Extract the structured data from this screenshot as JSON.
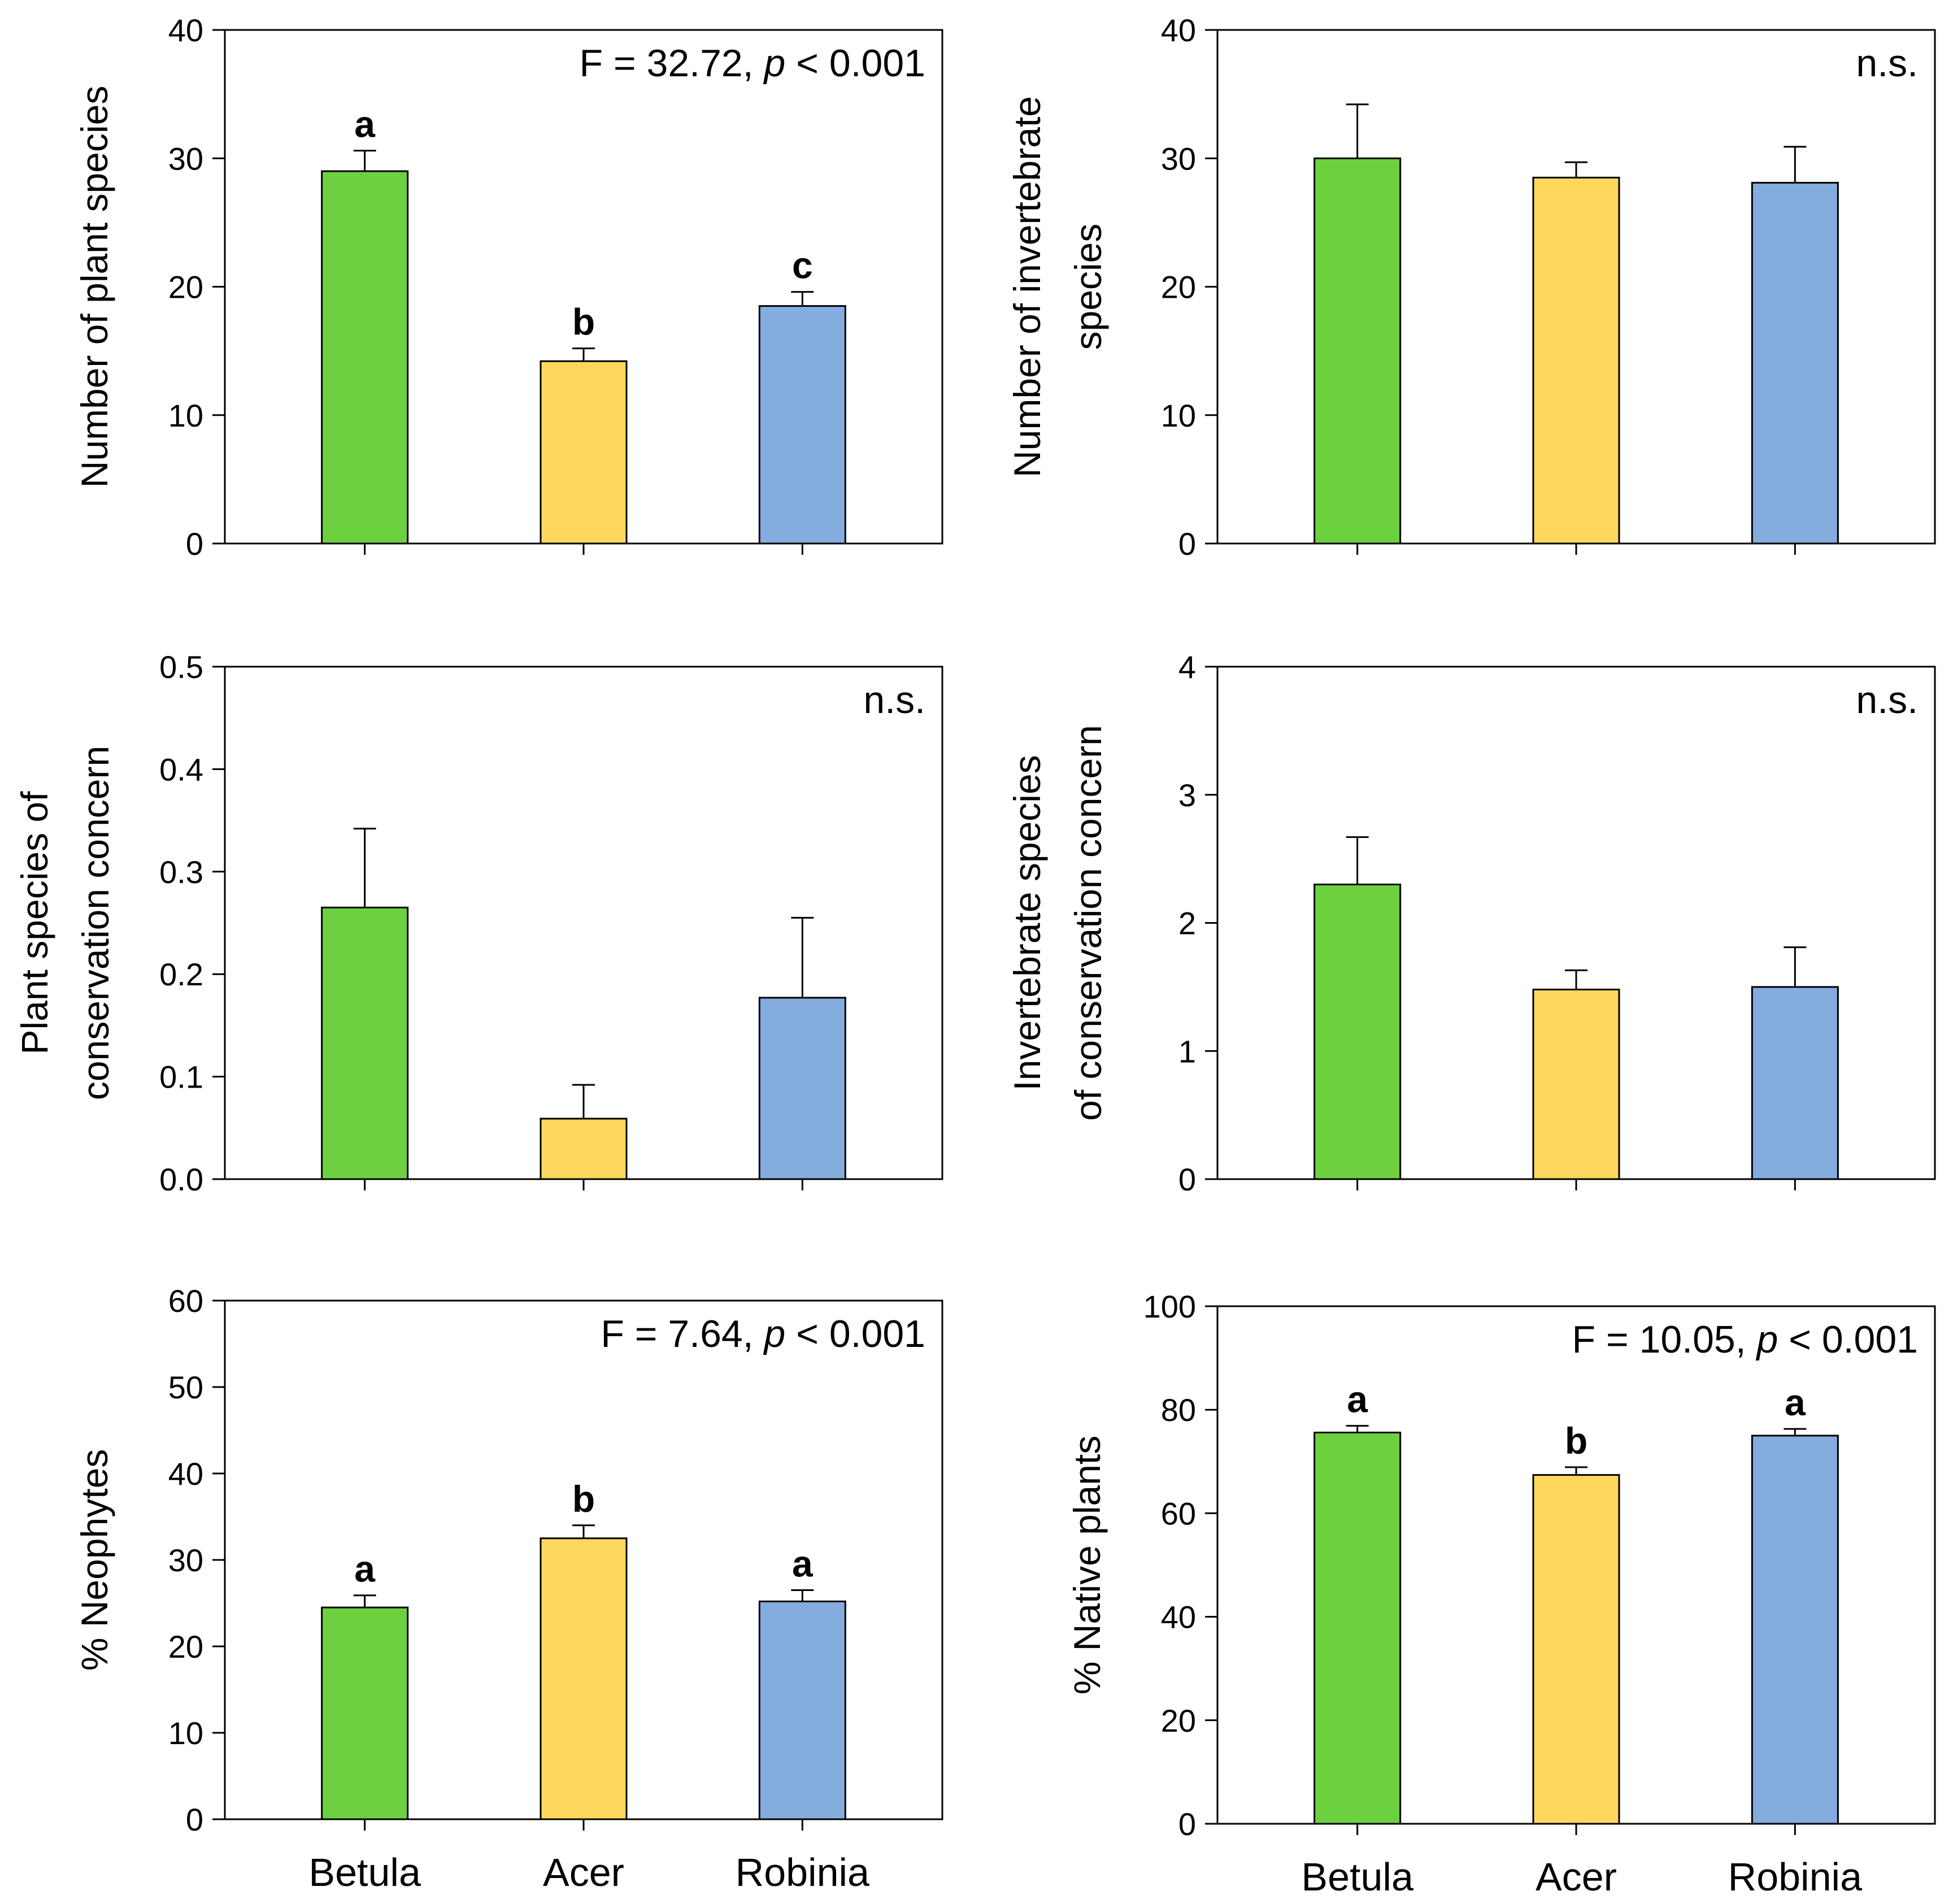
{
  "colors": {
    "Betula": "#6dd13f",
    "Acer": "#fdd85c",
    "Robinia": "#84acdf"
  },
  "chart_data": [
    {
      "type": "bar",
      "categories": [
        "Betula",
        "Acer",
        "Robinia"
      ],
      "values": [
        29.0,
        14.2,
        18.5
      ],
      "errors": [
        1.6,
        1.0,
        1.1
      ],
      "letters": [
        "a",
        "b",
        "c"
      ],
      "ylabel_lines": [
        "Number of plant species"
      ],
      "ylim": [
        0,
        40
      ],
      "yticks": [
        "0",
        "10",
        "20",
        "30",
        "40"
      ],
      "stat": {
        "prefix": "F = 32.72, ",
        "p": "p",
        "suffix": " < 0.001"
      },
      "show_xlabels": false
    },
    {
      "type": "bar",
      "categories": [
        "Betula",
        "Acer",
        "Robinia"
      ],
      "values": [
        30.0,
        28.5,
        28.1
      ],
      "errors": [
        4.2,
        1.2,
        2.8
      ],
      "letters": [
        "",
        "",
        ""
      ],
      "ylabel_lines": [
        "Number of invertebrate",
        "species"
      ],
      "ylim": [
        0,
        40
      ],
      "yticks": [
        "0",
        "10",
        "20",
        "30",
        "40"
      ],
      "stat": {
        "prefix": "n.s.",
        "p": "",
        "suffix": ""
      },
      "show_xlabels": false
    },
    {
      "type": "bar",
      "categories": [
        "Betula",
        "Acer",
        "Robinia"
      ],
      "values": [
        0.265,
        0.059,
        0.177
      ],
      "errors": [
        0.077,
        0.033,
        0.078
      ],
      "letters": [
        "",
        "",
        ""
      ],
      "ylabel_lines": [
        "Plant species of",
        "conservation concern"
      ],
      "ylim": [
        0,
        0.5
      ],
      "yticks": [
        "0.0",
        "0.1",
        "0.2",
        "0.3",
        "0.4",
        "0.5"
      ],
      "stat": {
        "prefix": "n.s.",
        "p": "",
        "suffix": ""
      },
      "show_xlabels": false
    },
    {
      "type": "bar",
      "categories": [
        "Betula",
        "Acer",
        "Robinia"
      ],
      "values": [
        2.3,
        1.48,
        1.5
      ],
      "errors": [
        0.37,
        0.15,
        0.31
      ],
      "letters": [
        "",
        "",
        ""
      ],
      "ylabel_lines": [
        "Invertebrate species",
        "of conservation concern"
      ],
      "ylim": [
        0,
        4
      ],
      "yticks": [
        "0",
        "1",
        "2",
        "3",
        "4"
      ],
      "stat": {
        "prefix": "n.s.",
        "p": "",
        "suffix": ""
      },
      "show_xlabels": false
    },
    {
      "type": "bar",
      "categories": [
        "Betula",
        "Acer",
        "Robinia"
      ],
      "values": [
        24.5,
        32.5,
        25.2
      ],
      "errors": [
        1.4,
        1.5,
        1.3
      ],
      "letters": [
        "a",
        "b",
        "a"
      ],
      "ylabel_lines": [
        "% Neophytes"
      ],
      "ylim": [
        0,
        60
      ],
      "yticks": [
        "0",
        "10",
        "20",
        "30",
        "40",
        "50",
        "60"
      ],
      "stat": {
        "prefix": "F = 7.64, ",
        "p": "p",
        "suffix": " < 0.001"
      },
      "show_xlabels": true
    },
    {
      "type": "bar",
      "categories": [
        "Betula",
        "Acer",
        "Robinia"
      ],
      "values": [
        75.6,
        67.4,
        75.0
      ],
      "errors": [
        1.3,
        1.5,
        1.3
      ],
      "letters": [
        "a",
        "b",
        "a"
      ],
      "ylabel_lines": [
        "% Native plants"
      ],
      "ylim": [
        0,
        100
      ],
      "yticks": [
        "0",
        "20",
        "40",
        "60",
        "80",
        "100"
      ],
      "stat": {
        "prefix": "F = 10.05, ",
        "p": "p",
        "suffix": " < 0.001"
      },
      "show_xlabels": true
    }
  ]
}
